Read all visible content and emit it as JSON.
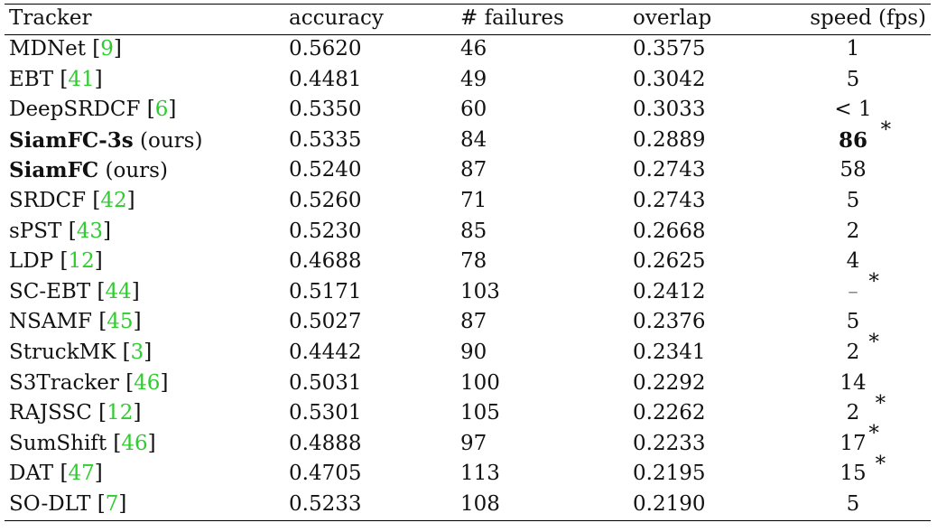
{
  "headers": {
    "tracker": "Tracker",
    "accuracy": "accuracy",
    "failures": "# failures",
    "overlap": "overlap",
    "speed": "speed (fps)"
  },
  "rows": [
    {
      "name": "MDNet",
      "ref": "9",
      "accuracy": "0.5620",
      "failures": "46",
      "overlap": "0.3575",
      "speed": "1"
    },
    {
      "name": "EBT",
      "ref": "41",
      "accuracy": "0.4481",
      "failures": "49",
      "overlap": "0.3042",
      "speed": "5"
    },
    {
      "name": "DeepSRDCF",
      "ref": "6",
      "accuracy": "0.5350",
      "failures": "60",
      "overlap": "0.3033",
      "speed": "< 1",
      "star": "*"
    },
    {
      "name": "SiamFC-3s",
      "suffix": "(ours)",
      "accuracy": "0.5335",
      "failures": "84",
      "overlap": "0.2889",
      "speed": "86",
      "bold": true
    },
    {
      "name": "SiamFC",
      "suffix": "(ours)",
      "accuracy": "0.5240",
      "failures": "87",
      "overlap": "0.2743",
      "speed": "58"
    },
    {
      "name": "SRDCF",
      "ref": "42",
      "accuracy": "0.5260",
      "failures": "71",
      "overlap": "0.2743",
      "speed": "5"
    },
    {
      "name": "sPST",
      "ref": "43",
      "accuracy": "0.5230",
      "failures": "85",
      "overlap": "0.2668",
      "speed": "2"
    },
    {
      "name": "LDP",
      "ref": "12",
      "accuracy": "0.4688",
      "failures": "78",
      "overlap": "0.2625",
      "speed": "4",
      "star": "*"
    },
    {
      "name": "SC-EBT",
      "ref": "44",
      "accuracy": "0.5171",
      "failures": "103",
      "overlap": "0.2412",
      "speed": "–"
    },
    {
      "name": "NSAMF",
      "ref": "45",
      "accuracy": "0.5027",
      "failures": "87",
      "overlap": "0.2376",
      "speed": "5",
      "star": "*"
    },
    {
      "name": "StruckMK",
      "ref": "3",
      "accuracy": "0.4442",
      "failures": "90",
      "overlap": "0.2341",
      "speed": "2"
    },
    {
      "name": "S3Tracker",
      "ref": "46",
      "accuracy": "0.5031",
      "failures": "100",
      "overlap": "0.2292",
      "speed": "14",
      "star": "*"
    },
    {
      "name": "RAJSSC",
      "ref": "12",
      "accuracy": "0.5301",
      "failures": "105",
      "overlap": "0.2262",
      "speed": "2",
      "star": "*"
    },
    {
      "name": "SumShift",
      "ref": "46",
      "accuracy": "0.4888",
      "failures": "97",
      "overlap": "0.2233",
      "speed": "17",
      "star": "*"
    },
    {
      "name": "DAT",
      "ref": "47",
      "accuracy": "0.4705",
      "failures": "113",
      "overlap": "0.2195",
      "speed": "15"
    },
    {
      "name": "SO-DLT",
      "ref": "7",
      "accuracy": "0.5233",
      "failures": "108",
      "overlap": "0.2190",
      "speed": "5"
    }
  ],
  "colors": {
    "reference": "#2ecc2e",
    "text": "#111111"
  }
}
